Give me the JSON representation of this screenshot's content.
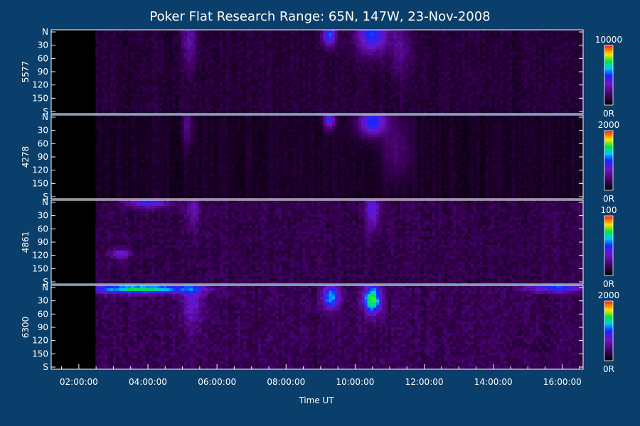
{
  "chart_data": {
    "type": "heatmap",
    "title": "Poker Flat Research Range: 65N, 147W, 23-Nov-2008",
    "xlabel": "Time UT",
    "x_ticks": [
      "02:00:00",
      "04:00:00",
      "06:00:00",
      "08:00:00",
      "10:00:00",
      "12:00:00",
      "14:00:00",
      "16:00:00"
    ],
    "xlim_hours": [
      1.2,
      16.6
    ],
    "data_start_hour": 2.45,
    "y_ticks": [
      "N",
      "30",
      "60",
      "90",
      "120",
      "150",
      "S"
    ],
    "ylim_deg": [
      0,
      180
    ],
    "panels": [
      {
        "wavelength": "5577",
        "colorbar_max": "10000",
        "colorbar_min": "0R",
        "base_intensity": 0.1,
        "events": [
          {
            "hour": 5.2,
            "width_hours": 0.2,
            "lat_deg": 20,
            "lat_spread": 60,
            "intensity": 0.25
          },
          {
            "hour": 9.25,
            "width_hours": 0.18,
            "lat_deg": 10,
            "lat_spread": 25,
            "intensity": 0.6
          },
          {
            "hour": 10.5,
            "width_hours": 0.45,
            "lat_deg": 10,
            "lat_spread": 40,
            "intensity": 0.55
          },
          {
            "hour": 11.3,
            "width_hours": 0.3,
            "lat_deg": 40,
            "lat_spread": 60,
            "intensity": 0.2
          }
        ]
      },
      {
        "wavelength": "4278",
        "colorbar_max": "2000",
        "colorbar_min": "0R",
        "base_intensity": 0.06,
        "events": [
          {
            "hour": 5.15,
            "width_hours": 0.15,
            "lat_deg": 20,
            "lat_spread": 50,
            "intensity": 0.22
          },
          {
            "hour": 9.25,
            "width_hours": 0.15,
            "lat_deg": 10,
            "lat_spread": 20,
            "intensity": 0.55
          },
          {
            "hour": 10.5,
            "width_hours": 0.4,
            "lat_deg": 15,
            "lat_spread": 30,
            "intensity": 0.6
          },
          {
            "hour": 11.2,
            "width_hours": 0.4,
            "lat_deg": 70,
            "lat_spread": 70,
            "intensity": 0.18
          }
        ]
      },
      {
        "wavelength": "4861",
        "colorbar_max": "100",
        "colorbar_min": "0R",
        "base_intensity": 0.14,
        "events": [
          {
            "hour": 4.0,
            "width_hours": 0.6,
            "lat_deg": 5,
            "lat_spread": 12,
            "intensity": 0.45
          },
          {
            "hour": 3.2,
            "width_hours": 0.3,
            "lat_deg": 115,
            "lat_spread": 10,
            "intensity": 0.35
          },
          {
            "hour": 5.3,
            "width_hours": 0.2,
            "lat_deg": 20,
            "lat_spread": 40,
            "intensity": 0.25
          },
          {
            "hour": 10.5,
            "width_hours": 0.2,
            "lat_deg": 20,
            "lat_spread": 40,
            "intensity": 0.4
          }
        ]
      },
      {
        "wavelength": "6300",
        "colorbar_max": "2000",
        "colorbar_min": "0R",
        "base_intensity": 0.16,
        "events": [
          {
            "hour": 3.8,
            "width_hours": 1.5,
            "lat_deg": 8,
            "lat_spread": 10,
            "intensity": 0.8
          },
          {
            "hour": 5.3,
            "width_hours": 0.3,
            "lat_deg": 30,
            "lat_spread": 60,
            "intensity": 0.3
          },
          {
            "hour": 9.3,
            "width_hours": 0.25,
            "lat_deg": 25,
            "lat_spread": 25,
            "intensity": 0.65
          },
          {
            "hour": 10.5,
            "width_hours": 0.25,
            "lat_deg": 30,
            "lat_spread": 30,
            "intensity": 0.9
          },
          {
            "hour": 15.8,
            "width_hours": 0.8,
            "lat_deg": 5,
            "lat_spread": 10,
            "intensity": 0.5
          }
        ]
      }
    ]
  }
}
